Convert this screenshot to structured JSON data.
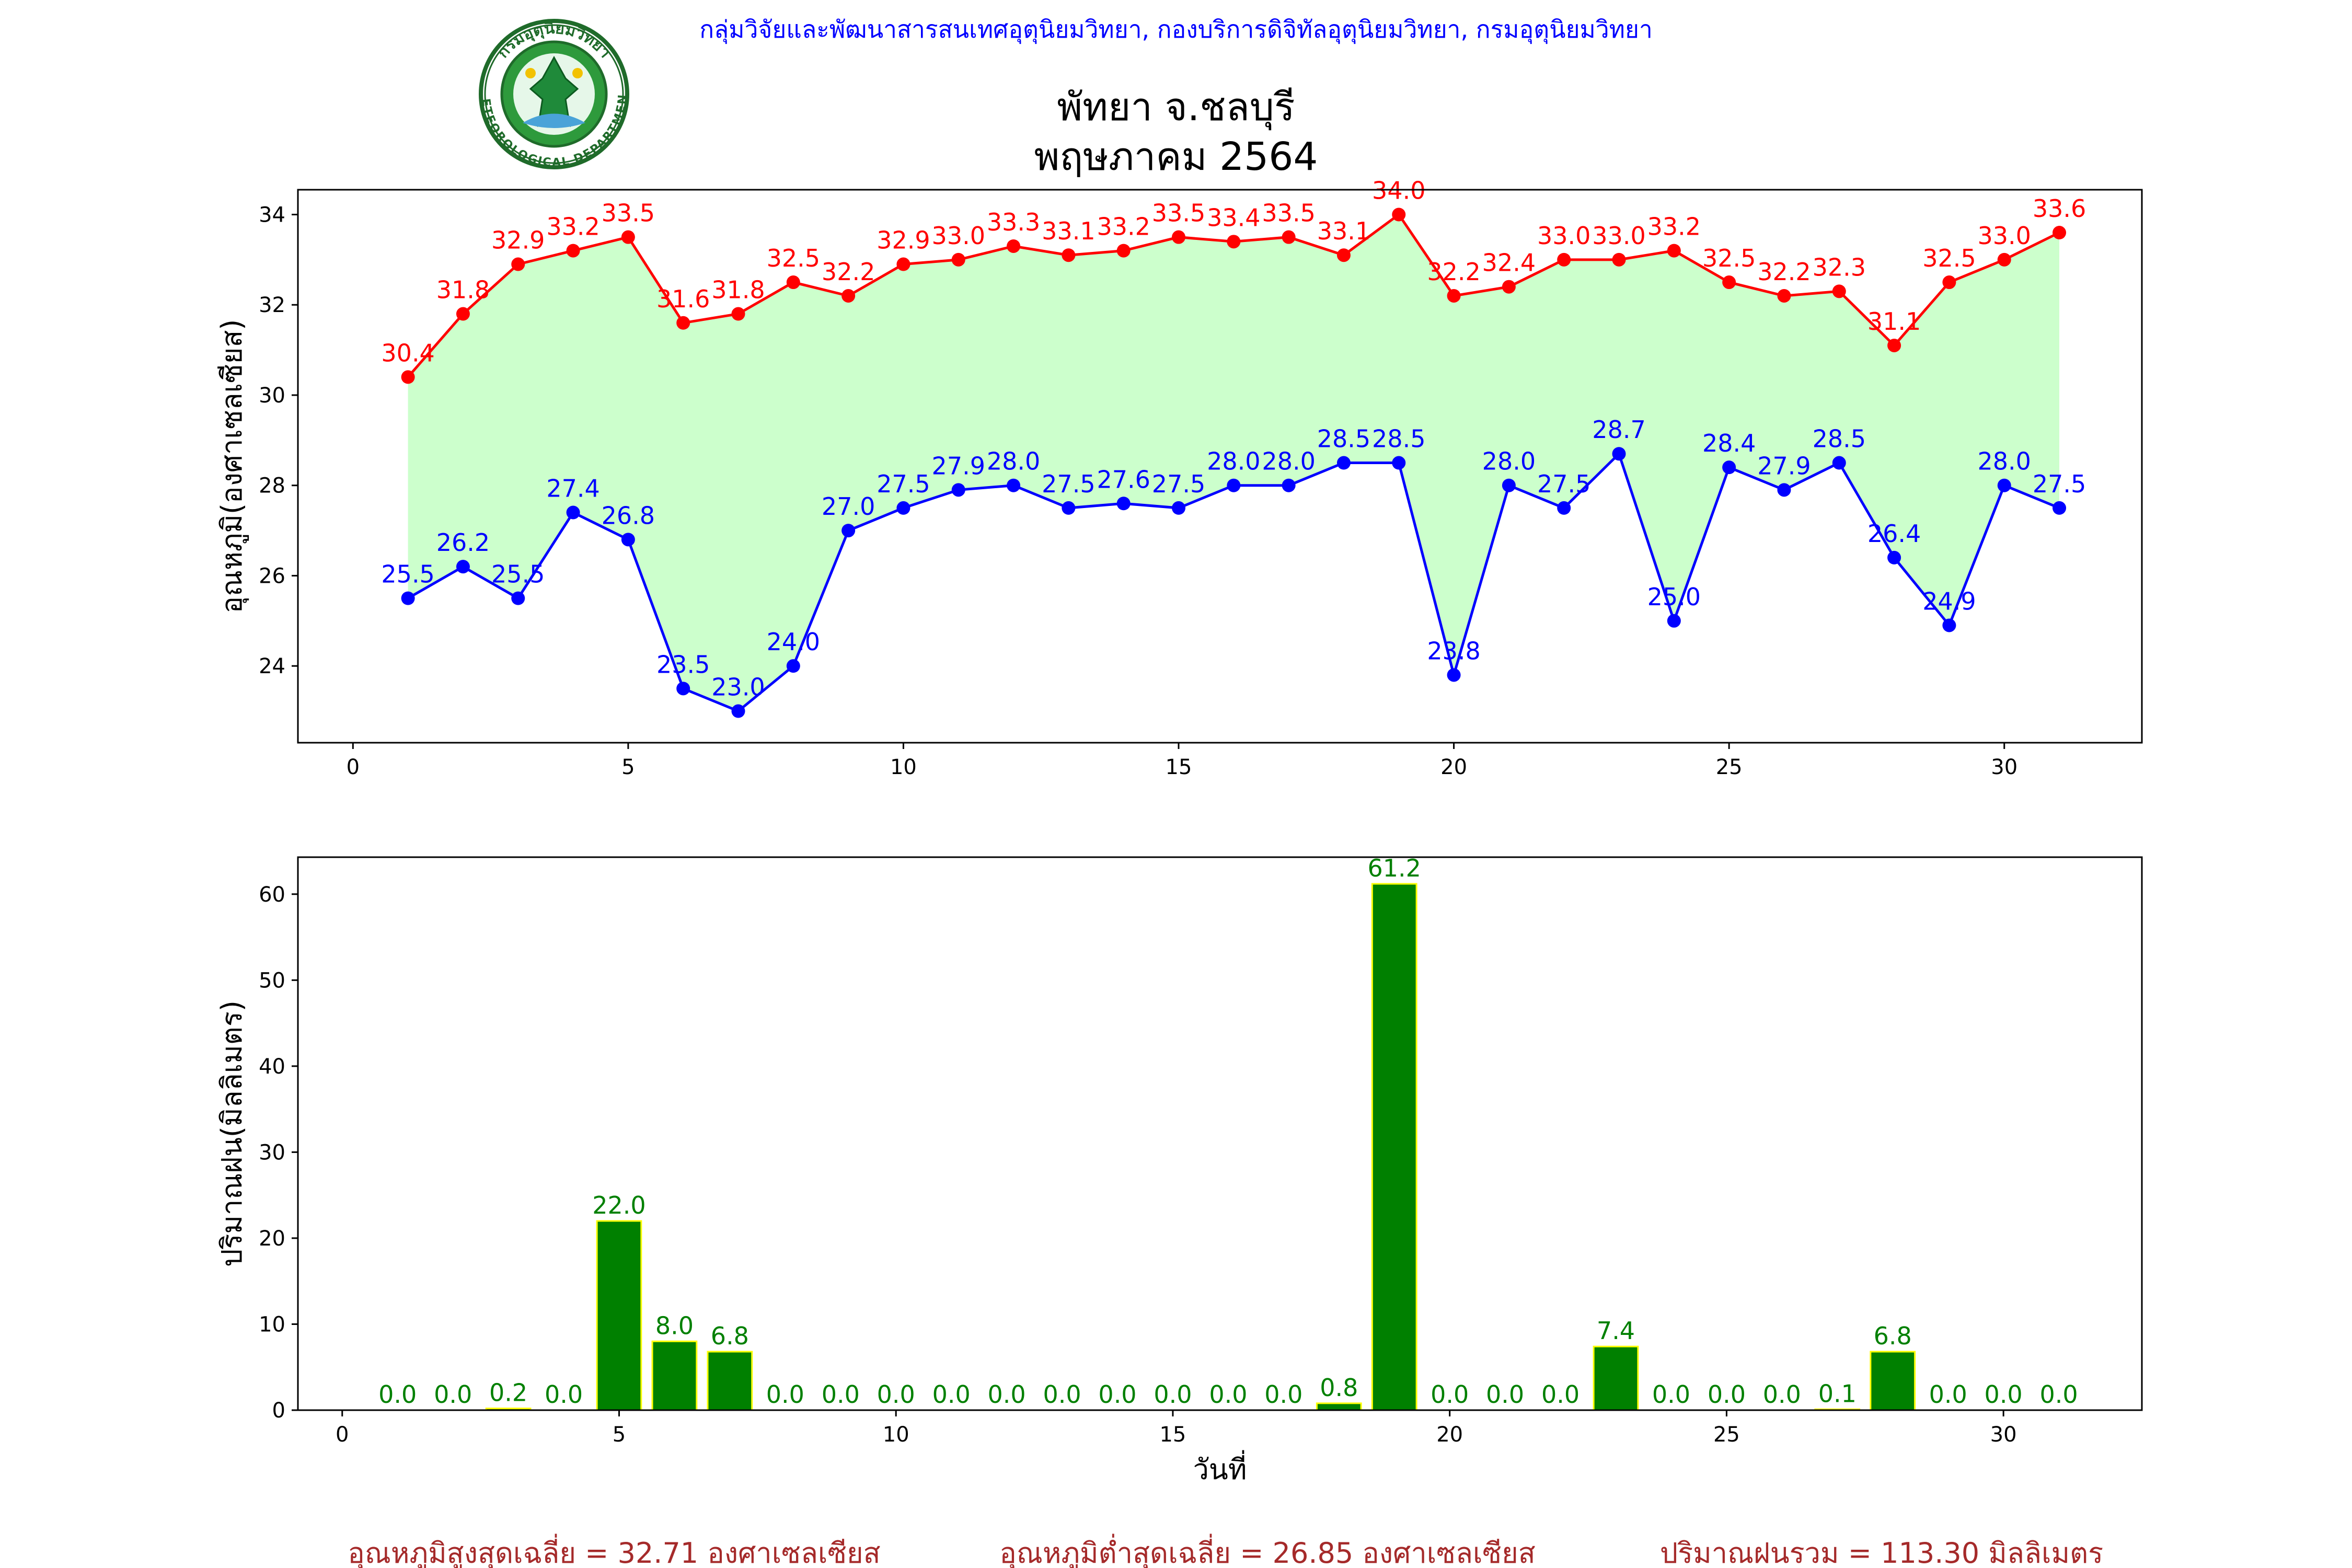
{
  "header": {
    "organization": "กลุ่มวิจัยและพัฒนาสารสนเทศอุตุนิยมวิทยา, กองบริการดิจิทัลอุตุนิยมวิทยา, กรมอุตุนิยมวิทยา",
    "title_line1": "พัทยา จ.ชลบุรี",
    "title_line2": "พฤษภาคม 2564"
  },
  "logo": {
    "top_text": "กรมอุตุนิยมวิทยา",
    "bottom_text": "METEOROLOGICAL DEPARTMENT"
  },
  "colors": {
    "max_temp": "#ff0000",
    "min_temp": "#0000ff",
    "temp_fill": "#ccffcc",
    "rain_bar": "#008000",
    "rain_edge": "#ffff00",
    "footer_text": "#a52a2a",
    "org_text": "#0000ff"
  },
  "chart_data": [
    {
      "type": "line",
      "ylabel": "อุณหภูมิ(องศาเซลเซียส)",
      "xlabel": "",
      "xlim": [
        -1,
        32.5
      ],
      "ylim": [
        22.3,
        34.55
      ],
      "x_ticks": [
        0,
        5,
        10,
        15,
        20,
        25,
        30
      ],
      "y_ticks": [
        24,
        26,
        28,
        30,
        32,
        34
      ],
      "fill_between": true,
      "x": [
        1,
        2,
        3,
        4,
        5,
        6,
        7,
        8,
        9,
        10,
        11,
        12,
        13,
        14,
        15,
        16,
        17,
        18,
        19,
        20,
        21,
        22,
        23,
        24,
        25,
        26,
        27,
        28,
        29,
        30,
        31
      ],
      "series": [
        {
          "values": [
            30.4,
            31.8,
            32.9,
            33.2,
            33.5,
            31.6,
            31.8,
            32.5,
            32.2,
            32.9,
            33.0,
            33.3,
            33.1,
            33.2,
            33.5,
            33.4,
            33.5,
            33.1,
            34.0,
            32.2,
            32.4,
            33.0,
            33.0,
            33.2,
            32.5,
            32.2,
            32.3,
            31.1,
            32.5,
            33.0,
            33.6
          ]
        },
        {
          "values": [
            25.5,
            26.2,
            25.5,
            27.4,
            26.8,
            23.5,
            23.0,
            24.0,
            27.0,
            27.5,
            27.9,
            28.0,
            27.5,
            27.6,
            27.5,
            28.0,
            28.0,
            28.5,
            28.5,
            23.8,
            28.0,
            27.5,
            28.7,
            25.0,
            28.4,
            27.9,
            28.5,
            26.4,
            24.9,
            28.0,
            27.5
          ]
        }
      ]
    },
    {
      "type": "bar",
      "ylabel": "ปริมาณฝน(มิลลิเมตร)",
      "xlabel": "วันที่",
      "xlim": [
        -0.8,
        32.5
      ],
      "ylim": [
        0,
        64.3
      ],
      "x_ticks": [
        0,
        5,
        10,
        15,
        20,
        25,
        30
      ],
      "y_ticks": [
        0,
        10,
        20,
        30,
        40,
        50,
        60
      ],
      "categories": [
        1,
        2,
        3,
        4,
        5,
        6,
        7,
        8,
        9,
        10,
        11,
        12,
        13,
        14,
        15,
        16,
        17,
        18,
        19,
        20,
        21,
        22,
        23,
        24,
        25,
        26,
        27,
        28,
        29,
        30,
        31
      ],
      "values": [
        0.0,
        0.0,
        0.2,
        0.0,
        22.0,
        8.0,
        6.8,
        0.0,
        0.0,
        0.0,
        0.0,
        0.0,
        0.0,
        0.0,
        0.0,
        0.0,
        0.0,
        0.8,
        61.2,
        0.0,
        0.0,
        0.0,
        7.4,
        0.0,
        0.0,
        0.0,
        0.1,
        6.8,
        0.0,
        0.0,
        0.0
      ]
    }
  ],
  "footer": {
    "avg_max": "อุณหภูมิสูงสุดเฉลี่ย = 32.71 องศาเซลเซียส",
    "avg_min": "อุณหภูมิต่ำสุดเฉลี่ย = 26.85 องศาเซลเซียส",
    "total_rain": "ปริมาณฝนรวม = 113.30 มิลลิเมตร"
  }
}
